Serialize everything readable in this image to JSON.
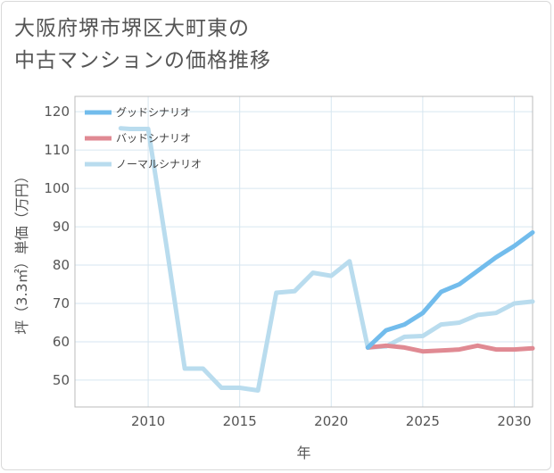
{
  "chart_data": {
    "type": "line",
    "title_lines": [
      "大阪府堺市堺区大町東の",
      "中古マンションの価格推移"
    ],
    "xlabel": "年",
    "ylabel": "坪（3.3㎡）単価（万円）",
    "xlim": [
      2006,
      2031
    ],
    "ylim": [
      43,
      124
    ],
    "x_ticks": [
      2010,
      2015,
      2020,
      2025,
      2030
    ],
    "y_ticks": [
      50,
      60,
      70,
      80,
      90,
      100,
      110,
      120
    ],
    "grid": true,
    "legend_position": "top-left",
    "series": [
      {
        "name": "グッドシナリオ",
        "color": "#72bcec",
        "points": [
          [
            2022,
            58.5
          ],
          [
            2023,
            63
          ],
          [
            2024,
            64.5
          ],
          [
            2025,
            67.5
          ],
          [
            2026,
            73
          ],
          [
            2027,
            75
          ],
          [
            2028,
            78.5
          ],
          [
            2029,
            82
          ],
          [
            2030,
            85
          ],
          [
            2031,
            88.5
          ]
        ]
      },
      {
        "name": "バッドシナリオ",
        "color": "#e08a93",
        "points": [
          [
            2022,
            58.5
          ],
          [
            2023,
            59
          ],
          [
            2024,
            58.5
          ],
          [
            2025,
            57.5
          ],
          [
            2026,
            57.7
          ],
          [
            2027,
            58
          ],
          [
            2028,
            59
          ],
          [
            2029,
            58
          ],
          [
            2030,
            58
          ],
          [
            2031,
            58.3
          ]
        ]
      },
      {
        "name": "ノーマルシナリオ",
        "color": "#b9dcee",
        "points": [
          [
            2008.5,
            115.7
          ],
          [
            2009,
            115.5
          ],
          [
            2010,
            115.5
          ],
          [
            2011,
            85
          ],
          [
            2012,
            53
          ],
          [
            2013,
            53
          ],
          [
            2014,
            48
          ],
          [
            2015,
            48
          ],
          [
            2016,
            47.3
          ],
          [
            2017,
            72.8
          ],
          [
            2018,
            73.2
          ],
          [
            2019,
            78
          ],
          [
            2020,
            77.2
          ],
          [
            2021,
            81
          ],
          [
            2022,
            58.5
          ],
          [
            2023,
            58.8
          ],
          [
            2024,
            61.3
          ],
          [
            2025,
            61.5
          ],
          [
            2026,
            64.5
          ],
          [
            2027,
            65
          ],
          [
            2028,
            67
          ],
          [
            2029,
            67.5
          ],
          [
            2030,
            70
          ],
          [
            2031,
            70.5
          ]
        ]
      }
    ]
  }
}
